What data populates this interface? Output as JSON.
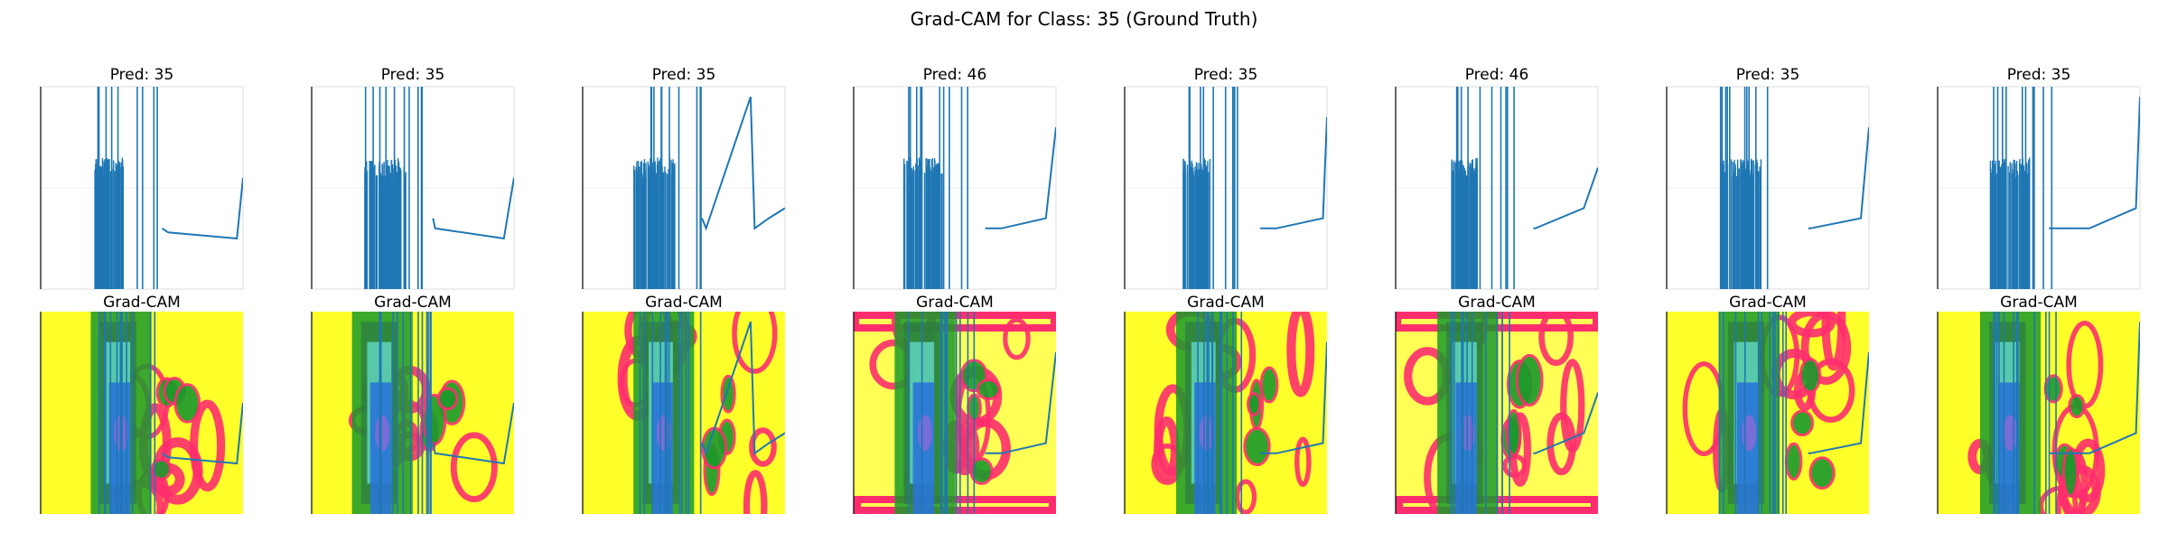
{
  "figure": {
    "title": "Grad-CAM for Class: 35 (Ground Truth)",
    "cam_label": "Grad-CAM"
  },
  "colors": {
    "line": "#1f77b4",
    "cam_base": "#ffff2a",
    "cam_bright": "#ffff55",
    "cam_pink": "#ff2d6e",
    "cam_green": "#1a9a2a",
    "cam_dark_green": "#2b7a45",
    "cam_cyan": "#66e0d0",
    "cam_blue": "#2a74d8",
    "cam_purple": "#8a6ad8",
    "grid": "#dddddd",
    "axis": "#000000"
  },
  "chart_data": [
    {
      "type": "line",
      "panel": 1,
      "title": "Pred: 35",
      "x": [
        0.6,
        0.63,
        0.97,
        1.0
      ],
      "y": [
        0.3,
        0.28,
        0.25,
        0.55
      ]
    },
    {
      "type": "line",
      "panel": 2,
      "title": "Pred: 35",
      "x": [
        0.6,
        0.61,
        0.95,
        1.0
      ],
      "y": [
        0.35,
        0.3,
        0.25,
        0.55
      ]
    },
    {
      "type": "line",
      "panel": 3,
      "title": "Pred: 35",
      "x": [
        0.59,
        0.61,
        0.83,
        0.85,
        0.92,
        1.0
      ],
      "y": [
        0.35,
        0.3,
        0.95,
        0.3,
        0.35,
        0.4
      ]
    },
    {
      "type": "line",
      "panel": 4,
      "title": "Pred: 46",
      "x": [
        0.65,
        0.73,
        0.95,
        1.0
      ],
      "y": [
        0.3,
        0.3,
        0.35,
        0.8
      ]
    },
    {
      "type": "line",
      "panel": 5,
      "title": "Pred: 35",
      "x": [
        0.67,
        0.75,
        0.98,
        1.0
      ],
      "y": [
        0.3,
        0.3,
        0.35,
        0.85
      ]
    },
    {
      "type": "line",
      "panel": 6,
      "title": "Pred: 46",
      "x": [
        0.68,
        0.69,
        0.93,
        1.0
      ],
      "y": [
        0.3,
        0.3,
        0.4,
        0.6
      ]
    },
    {
      "type": "line",
      "panel": 7,
      "title": "Pred: 35",
      "x": [
        0.7,
        0.71,
        0.96,
        1.0
      ],
      "y": [
        0.3,
        0.3,
        0.35,
        0.8
      ]
    },
    {
      "type": "line",
      "panel": 8,
      "title": "Pred: 35",
      "x": [
        0.55,
        0.75,
        0.98,
        1.0
      ],
      "y": [
        0.3,
        0.3,
        0.4,
        0.95
      ]
    }
  ]
}
